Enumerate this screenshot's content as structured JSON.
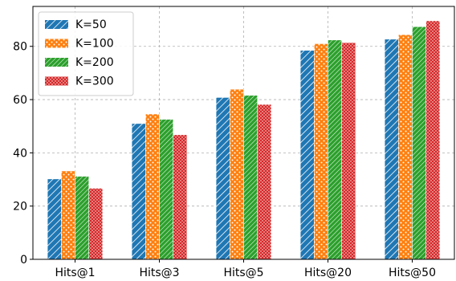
{
  "chart_data": {
    "type": "bar",
    "title": "",
    "xlabel": "",
    "ylabel": "",
    "categories": [
      "Hits@1",
      "Hits@3",
      "Hits@5",
      "Hits@20",
      "Hits@50"
    ],
    "series": [
      {
        "name": "K=50",
        "values": [
          30.2,
          51.0,
          60.8,
          78.5,
          82.7
        ],
        "color": "#1f77b4",
        "pattern": "diagonal-hatch"
      },
      {
        "name": "K=100",
        "values": [
          33.2,
          54.6,
          63.9,
          81.0,
          84.4
        ],
        "color": "#ff7f0e",
        "pattern": "dots"
      },
      {
        "name": "K=200",
        "values": [
          31.2,
          52.6,
          61.6,
          82.4,
          87.4
        ],
        "color": "#2ca02c",
        "pattern": "fine-diagonal-hatch"
      },
      {
        "name": "K=300",
        "values": [
          26.7,
          46.8,
          58.2,
          81.4,
          89.6
        ],
        "color": "#d62728",
        "pattern": "small-dots"
      }
    ],
    "ylim": [
      0,
      95
    ],
    "yticks": [
      0,
      20,
      40,
      60,
      80
    ],
    "grid": true,
    "legend_position": "top-left"
  }
}
